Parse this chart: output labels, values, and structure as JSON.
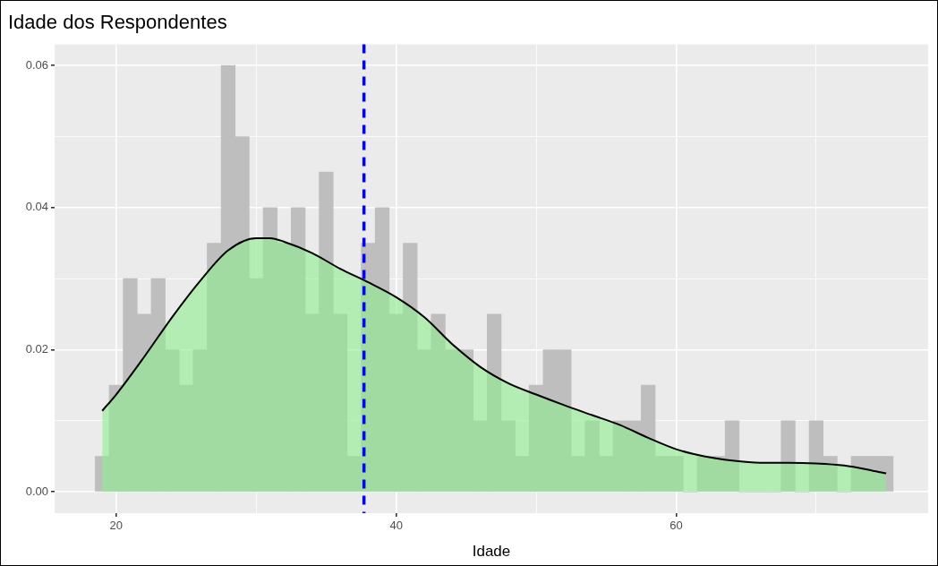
{
  "chart_data": {
    "type": "histogram",
    "title": "Idade dos Respondentes",
    "xlabel": "Idade",
    "bins": [
      18.5,
      19.5,
      20.5,
      21.5,
      22.5,
      23.5,
      24.5,
      25.5,
      26.5,
      27.5,
      28.5,
      29.5,
      30.5,
      31.5,
      32.5,
      33.5,
      34.5,
      35.5,
      36.5,
      37.5,
      38.5,
      39.5,
      40.5,
      41.5,
      42.5,
      43.5,
      44.5,
      45.5,
      46.5,
      47.5,
      48.5,
      49.5,
      50.5,
      51.5,
      52.5,
      53.5,
      54.5,
      55.5,
      56.5,
      57.5,
      58.5,
      59.5,
      60.5,
      61.5,
      62.5,
      63.5,
      64.5,
      65.5,
      66.5,
      67.5,
      68.5,
      69.5,
      70.5,
      71.5,
      72.5,
      73.5,
      74.5,
      75.5
    ],
    "series": [
      {
        "type": "histogram",
        "color": "#bebebe",
        "values": [
          0.005,
          0.015,
          0.03,
          0.025,
          0.03,
          0.02,
          0.015,
          0.02,
          0.035,
          0.06,
          0.05,
          0.03,
          0.04,
          0.035,
          0.04,
          0.025,
          0.045,
          0.025,
          0.005,
          0.035,
          0.04,
          0.025,
          0.035,
          0.02,
          0.025,
          0.02,
          0.02,
          0.01,
          0.025,
          0.01,
          0.005,
          0.015,
          0.02,
          0.02,
          0.005,
          0.01,
          0.005,
          0.01,
          0.01,
          0.015,
          0.005,
          0.005,
          0,
          0.005,
          0.005,
          0.01,
          0,
          0,
          0,
          0.01,
          0,
          0.01,
          0.005,
          0,
          0.005,
          0.005,
          0.005
        ]
      },
      {
        "type": "area",
        "color": "#90ee90",
        "x": [
          19,
          20,
          22,
          24,
          26,
          28,
          30,
          31,
          32,
          34,
          36,
          38,
          40,
          42,
          44,
          46,
          48,
          50,
          52,
          54,
          56,
          58,
          60,
          62,
          64,
          66,
          68,
          70,
          72,
          74,
          75
        ],
        "values": [
          0.0114,
          0.0137,
          0.019,
          0.0246,
          0.0297,
          0.034,
          0.0357,
          0.0357,
          0.0352,
          0.0336,
          0.0314,
          0.0295,
          0.0274,
          0.0246,
          0.0208,
          0.0176,
          0.0153,
          0.0137,
          0.0122,
          0.0108,
          0.0094,
          0.0076,
          0.006,
          0.005,
          0.0044,
          0.0041,
          0.0041,
          0.004,
          0.0037,
          0.003,
          0.0026
        ]
      }
    ],
    "ref_lines": [
      {
        "axis": "x",
        "value": 37.7,
        "color": "#0000ff",
        "line_style": "dashed"
      }
    ],
    "xlim": [
      15.6,
      78
    ],
    "xticks": [
      20,
      {
        "value": 30,
        "label": null
      },
      40,
      {
        "value": 50,
        "label": null
      },
      60,
      {
        "value": 70,
        "label": null
      }
    ],
    "ylim": [
      -0.003,
      0.063
    ],
    "yticks": [
      {
        "value": 0,
        "label": "0.00"
      },
      {
        "value": 0.01,
        "label": null
      },
      {
        "value": 0.02,
        "label": "0.02"
      },
      {
        "value": 0.03,
        "label": null
      },
      {
        "value": 0.04,
        "label": "0.04"
      },
      {
        "value": 0.05,
        "label": null
      },
      {
        "value": 0.06,
        "label": "0.06"
      }
    ],
    "grid": true,
    "legend": false
  }
}
